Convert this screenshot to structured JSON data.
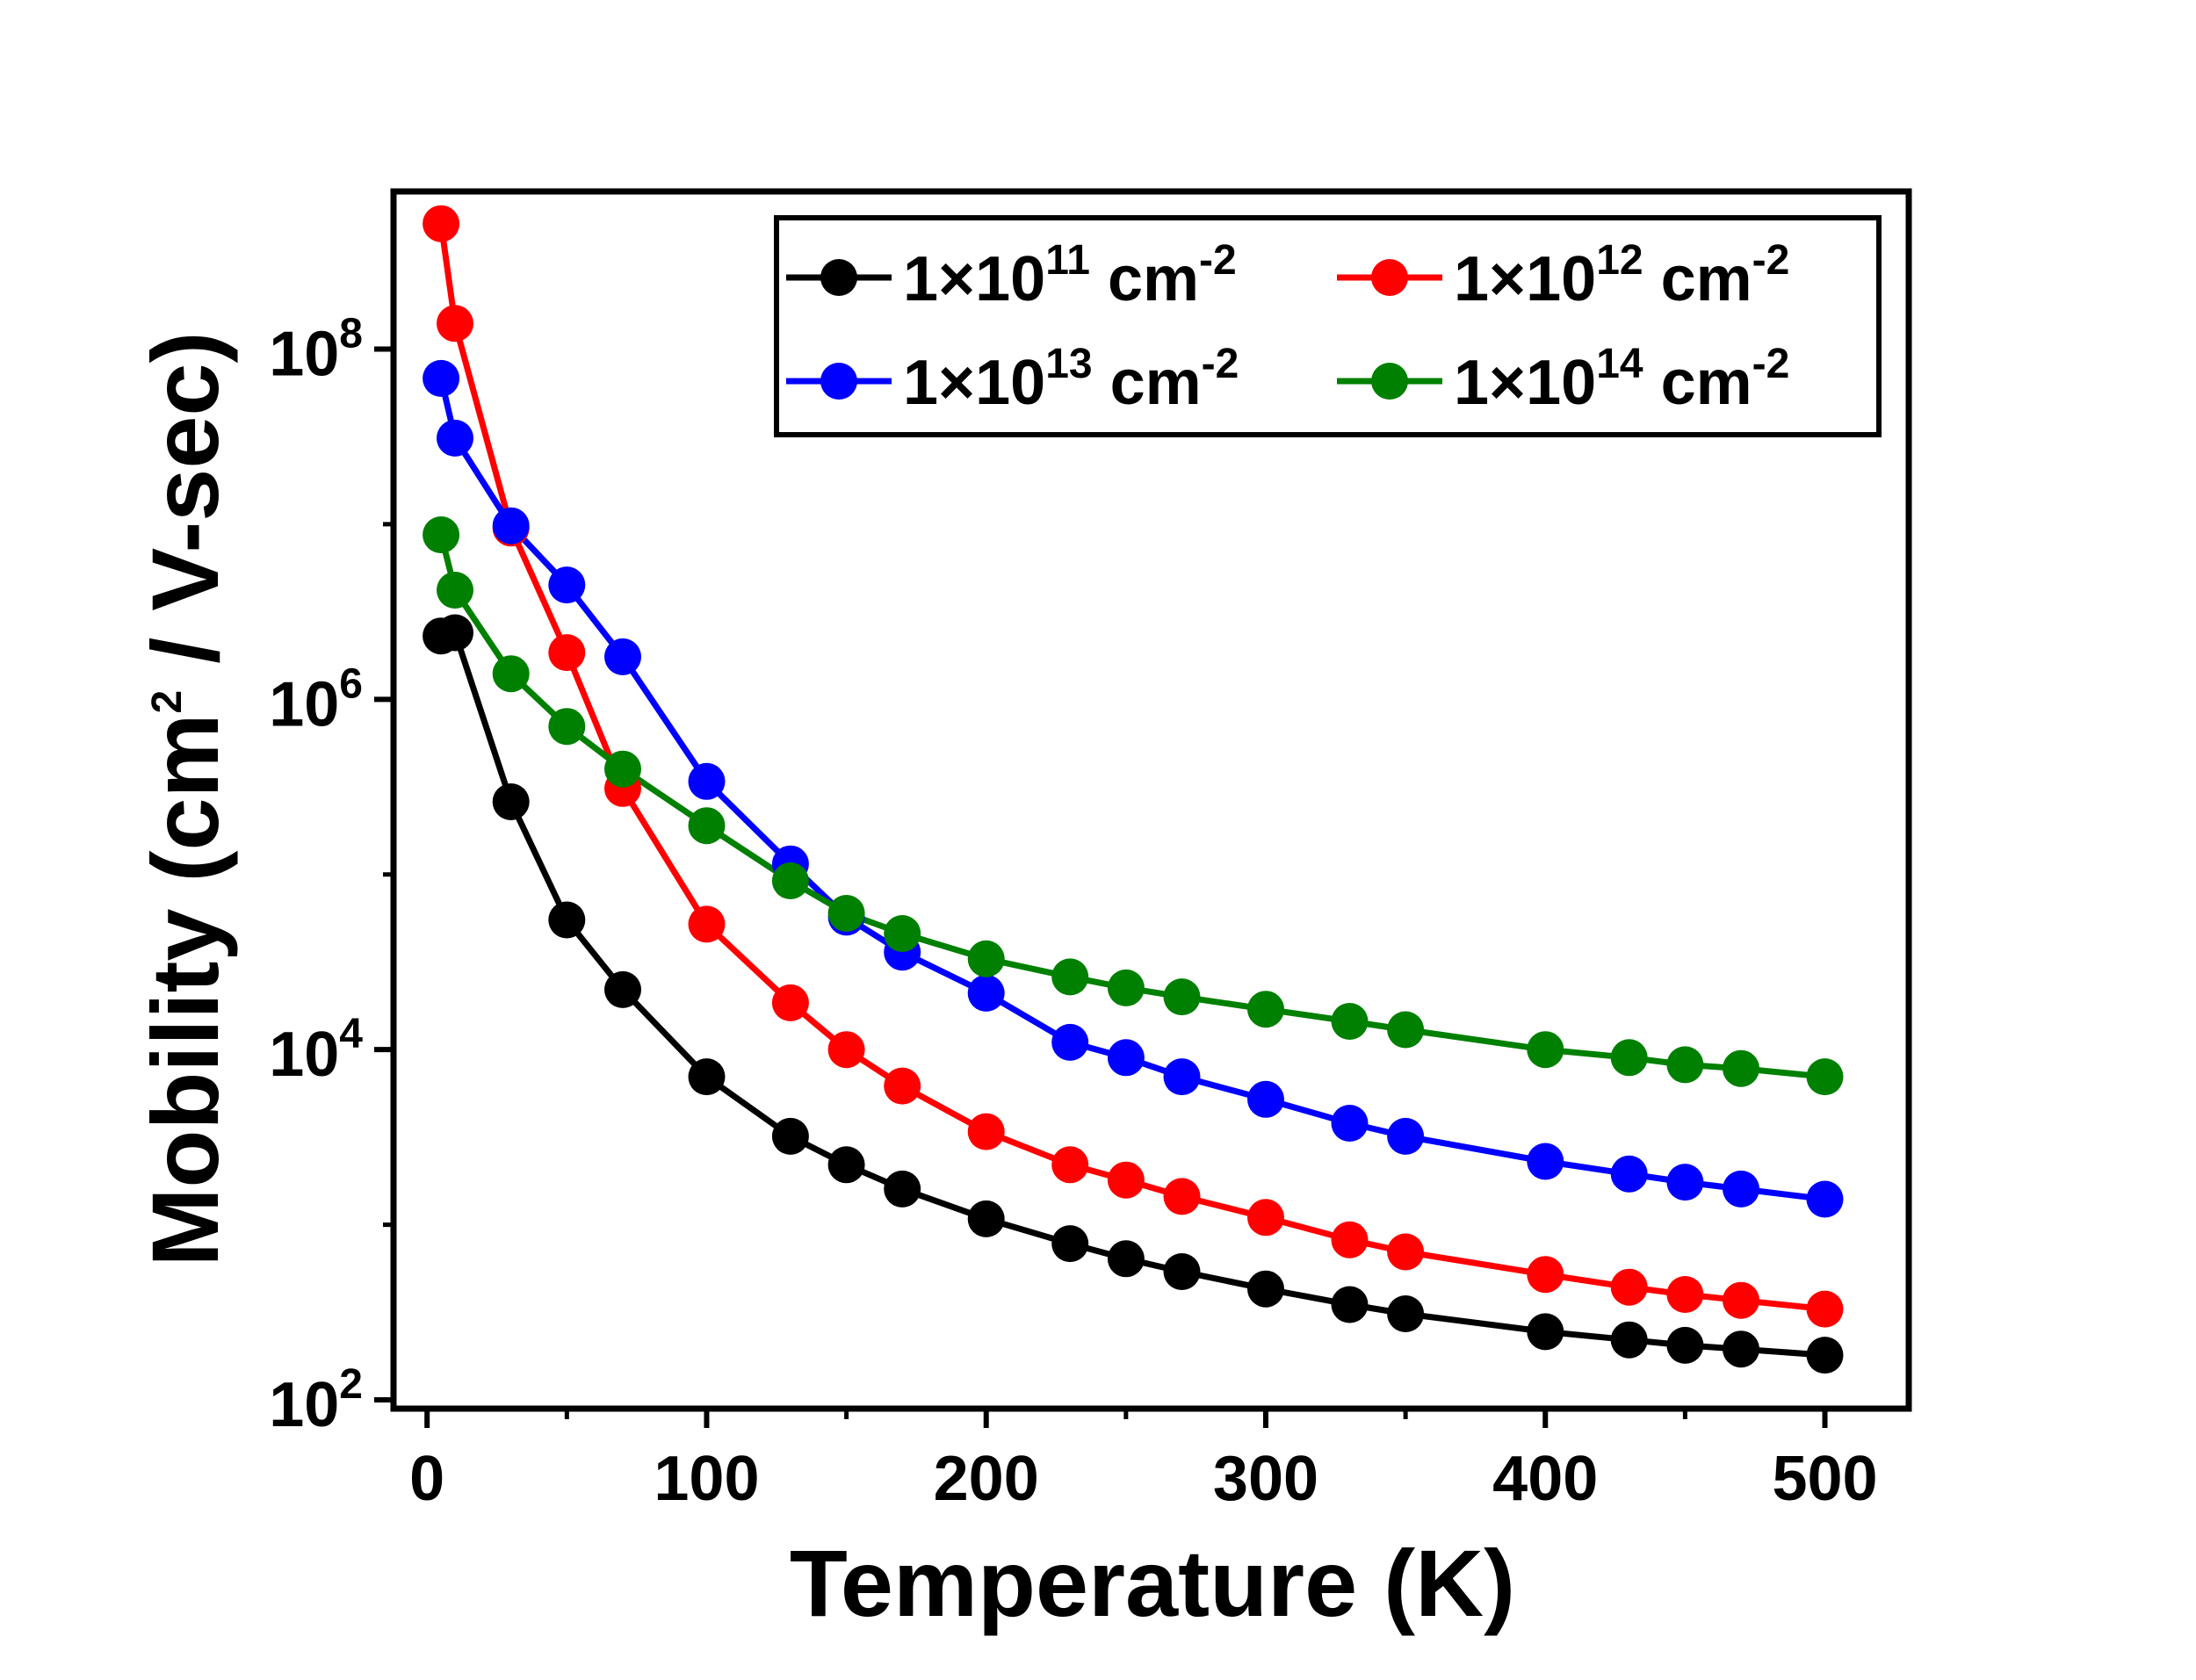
{
  "chart_data": {
    "type": "line",
    "title": "",
    "xlabel": "Temperature (K)",
    "ylabel": {
      "prefix": "Mobility (cm",
      "superscript": "2",
      "suffix": " / V-sec)"
    },
    "xlim": [
      -12,
      530
    ],
    "ylim_log10": [
      1.95,
      8.9
    ],
    "yscale": "log",
    "grid": false,
    "legend_position": "top-right",
    "x_ticks": [
      0,
      100,
      200,
      300,
      400,
      500
    ],
    "x_tick_labels": [
      "0",
      "100",
      "200",
      "300",
      "400",
      "500"
    ],
    "y_ticks": [
      100,
      10000,
      1000000,
      100000000
    ],
    "y_tick_labels": [
      {
        "base": "10",
        "exp": "2"
      },
      {
        "base": "10",
        "exp": "4"
      },
      {
        "base": "10",
        "exp": "6"
      },
      {
        "base": "10",
        "exp": "8"
      }
    ],
    "x": [
      5,
      10,
      30,
      50,
      70,
      100,
      130,
      150,
      170,
      200,
      230,
      250,
      270,
      300,
      330,
      350,
      400,
      430,
      450,
      470,
      500
    ],
    "series": [
      {
        "name": "1×10^11 cm^-2",
        "label_base": "1×10",
        "label_exp": "11",
        "label_unit": " cm",
        "label_unit_exp": "-2",
        "color": "#000000",
        "values": [
          2300000,
          2400000,
          260000,
          55000,
          22000,
          7000,
          3200,
          2200,
          1600,
          1080,
          780,
          640,
          540,
          430,
          350,
          310,
          245,
          220,
          205,
          195,
          180
        ]
      },
      {
        "name": "1×10^12 cm^-2",
        "label_base": "1×10",
        "label_exp": "12",
        "label_unit": " cm",
        "label_unit_exp": "-2",
        "color": "#ff0000",
        "values": [
          520000000,
          140000000,
          9500000,
          1850000,
          310000,
          52000,
          18500,
          10000,
          6200,
          3400,
          2200,
          1800,
          1450,
          1100,
          820,
          700,
          520,
          440,
          400,
          370,
          330
        ]
      },
      {
        "name": "1×10^13 cm^-2",
        "label_base": "1×10",
        "label_exp": "13",
        "label_unit": " cm",
        "label_unit_exp": "-2",
        "color": "#0000ff",
        "values": [
          68000000,
          31000000,
          9800000,
          4500000,
          1750000,
          340000,
          115000,
          57000,
          36000,
          21000,
          11000,
          9000,
          7000,
          5200,
          3800,
          3200,
          2300,
          1950,
          1750,
          1600,
          1400
        ]
      },
      {
        "name": "1×10^14 cm^-2",
        "label_base": "1×10",
        "label_exp": "14",
        "label_unit": " cm",
        "label_unit_exp": "-2",
        "color": "#008000",
        "values": [
          8700000,
          4200000,
          1400000,
          700000,
          400000,
          190000,
          92000,
          60000,
          46000,
          33000,
          26000,
          22500,
          20000,
          17000,
          14500,
          13000,
          10000,
          9000,
          8200,
          7800,
          7000
        ]
      }
    ]
  }
}
